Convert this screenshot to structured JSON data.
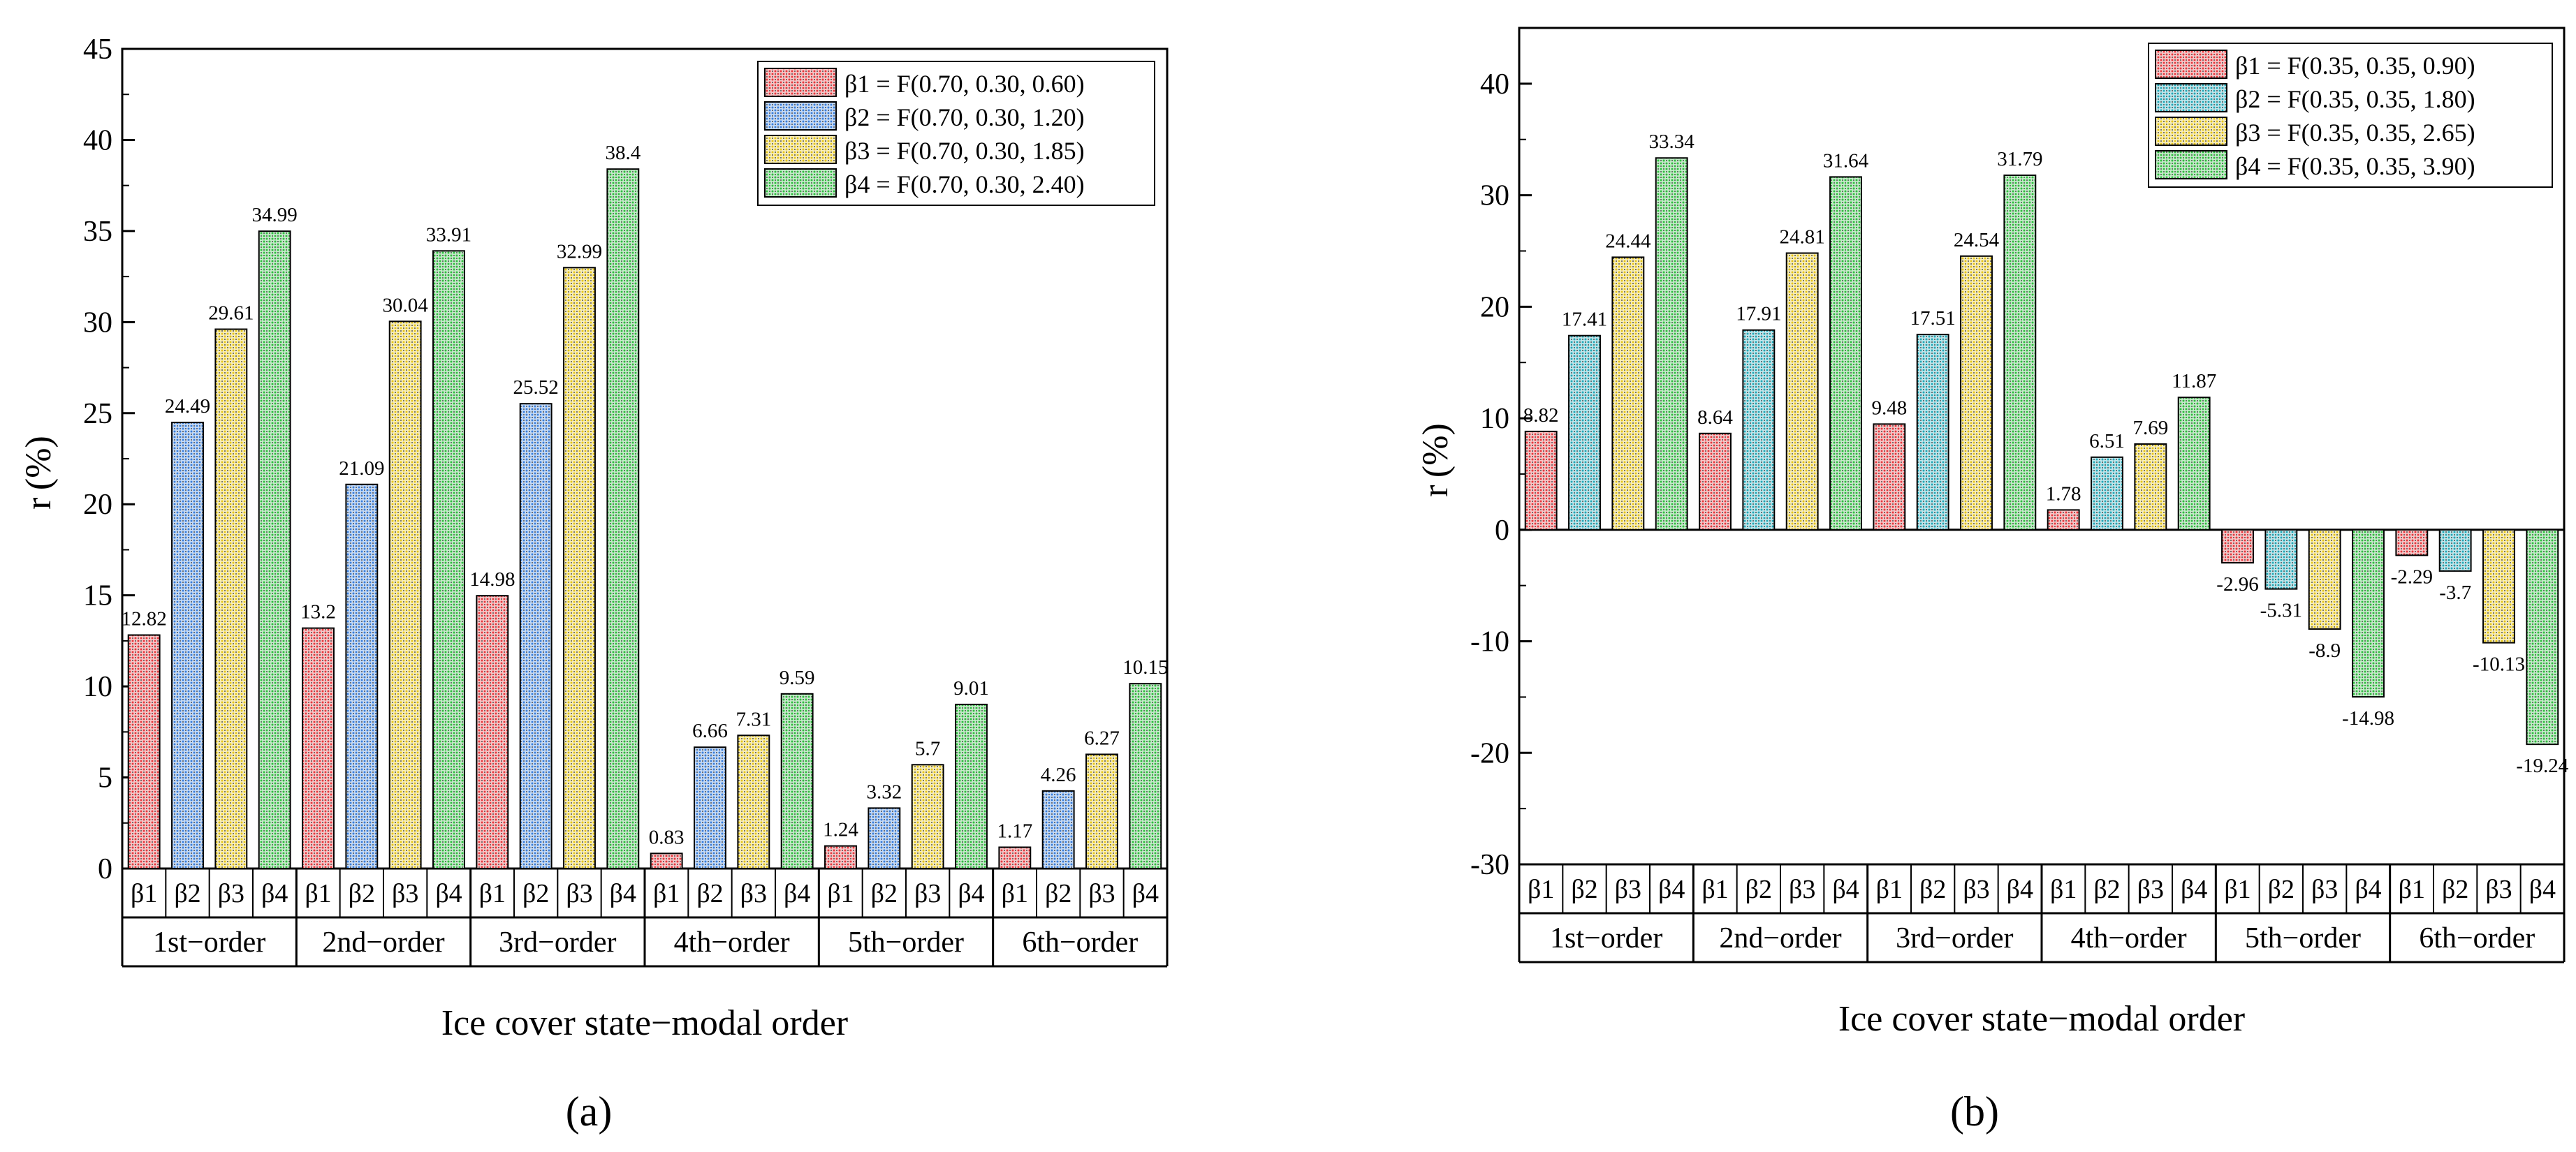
{
  "figure": {
    "panels": [
      "(a)",
      "(b)"
    ],
    "patterns": [
      "red",
      "blue",
      "yellow",
      "green"
    ]
  },
  "chart_data": [
    {
      "type": "bar",
      "panel_label": "(a)",
      "title": "",
      "xlabel": "Ice cover state−modal order",
      "ylabel": "r (%)",
      "ylim": [
        0,
        45
      ],
      "yticks": [
        0,
        5,
        10,
        15,
        20,
        25,
        30,
        35,
        40,
        45
      ],
      "grid": false,
      "legend_position": "top-right",
      "categories": [
        "1st−order",
        "2nd−order",
        "3rd−order",
        "4th−order",
        "5th−order",
        "6th−order"
      ],
      "subcategories": [
        "β1",
        "β2",
        "β3",
        "β4"
      ],
      "series": [
        {
          "name": "β1 = F(0.70, 0.30, 0.60)",
          "color": "#e8383d",
          "values": [
            12.82,
            13.2,
            14.98,
            0.83,
            1.24,
            1.17
          ],
          "labels": [
            "12.82",
            "13.2",
            "14.98",
            "0.83",
            "1.24",
            "1.17"
          ]
        },
        {
          "name": "β2 = F(0.70, 0.30, 1.20)",
          "color": "#3a7fdc",
          "values": [
            24.49,
            21.09,
            25.52,
            6.66,
            3.32,
            4.26
          ],
          "labels": [
            "24.49",
            "21.09",
            "25.52",
            "6.66",
            "3.32",
            "4.26"
          ]
        },
        {
          "name": "β3 = F(0.70, 0.30, 1.85)",
          "color": "#e6c619",
          "values": [
            29.61,
            30.04,
            32.99,
            7.31,
            5.7,
            6.27
          ],
          "labels": [
            "29.61",
            "30.04",
            "32.99",
            "7.31",
            "5.7",
            "6.27"
          ]
        },
        {
          "name": "β4 = F(0.70, 0.30, 2.40)",
          "color": "#2fbf3f",
          "values": [
            34.99,
            33.91,
            38.4,
            9.59,
            9.01,
            10.15
          ],
          "labels": [
            "34.99",
            "33.91",
            "38.4",
            "9.59",
            "9.01",
            "10.15"
          ]
        }
      ]
    },
    {
      "type": "bar",
      "panel_label": "(b)",
      "title": "",
      "xlabel": "Ice cover state−modal order",
      "ylabel": "r (%)",
      "ylim": [
        -30,
        45
      ],
      "yticks": [
        -30,
        -20,
        -10,
        0,
        10,
        20,
        30,
        40
      ],
      "grid": false,
      "legend_position": "top-right",
      "categories": [
        "1st−order",
        "2nd−order",
        "3rd−order",
        "4th−order",
        "5th−order",
        "6th−order"
      ],
      "subcategories": [
        "β1",
        "β2",
        "β3",
        "β4"
      ],
      "series": [
        {
          "name": "β1 = F(0.35, 0.35, 0.90)",
          "color": "#e8383d",
          "values": [
            8.82,
            8.64,
            9.48,
            1.78,
            -2.96,
            -2.29
          ],
          "labels": [
            "8.82",
            "8.64",
            "9.48",
            "1.78",
            "-2.96",
            "-2.29"
          ]
        },
        {
          "name": "β2 = F(0.35, 0.35, 1.80)",
          "color": "#22a9b8",
          "values": [
            17.41,
            17.91,
            17.51,
            6.51,
            -5.31,
            -3.7
          ],
          "labels": [
            "17.41",
            "17.91",
            "17.51",
            "6.51",
            "-5.31",
            "-3.7"
          ]
        },
        {
          "name": "β3 = F(0.35, 0.35, 2.65)",
          "color": "#e6c619",
          "values": [
            24.44,
            24.81,
            24.54,
            7.69,
            -8.9,
            -10.13
          ],
          "labels": [
            "24.44",
            "24.81",
            "24.54",
            "7.69",
            "-8.9",
            "-10.13"
          ]
        },
        {
          "name": "β4 = F(0.35, 0.35, 3.90)",
          "color": "#2fbf3f",
          "values": [
            33.34,
            31.64,
            31.79,
            11.87,
            -14.98,
            -19.24
          ],
          "labels": [
            "33.34",
            "31.64",
            "31.79",
            "11.87",
            "-14.98",
            "-19.24"
          ]
        }
      ]
    }
  ]
}
